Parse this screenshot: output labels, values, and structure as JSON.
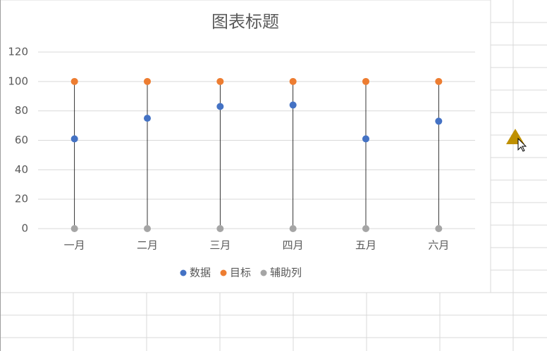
{
  "chart_data": {
    "type": "dot",
    "title": "图表标题",
    "categories": [
      "一月",
      "二月",
      "三月",
      "四月",
      "五月",
      "六月"
    ],
    "series": [
      {
        "name": "数据",
        "color": "#4472c4",
        "values": [
          61,
          75,
          83,
          84,
          61,
          73
        ]
      },
      {
        "name": "目标",
        "color": "#ed7d31",
        "values": [
          100,
          100,
          100,
          100,
          100,
          100
        ]
      },
      {
        "name": "辅助列",
        "color": "#a5a5a5",
        "values": [
          0,
          0,
          0,
          0,
          0,
          0
        ]
      }
    ],
    "ylim": [
      0,
      120
    ],
    "yticks": [
      0,
      20,
      40,
      60,
      80,
      100,
      120
    ],
    "grid": true,
    "drop_lines": true,
    "legend": "bottom"
  }
}
